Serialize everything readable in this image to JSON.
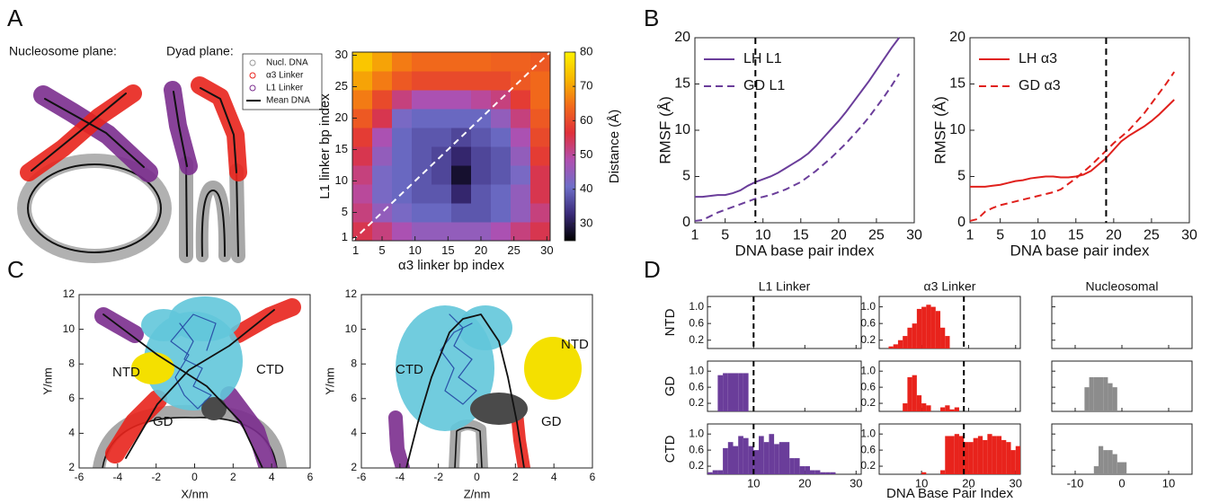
{
  "panel_labels": [
    "A",
    "B",
    "C",
    "D"
  ],
  "panel_a": {
    "captions": [
      "Nucleosome plane:",
      "Dyad plane:"
    ],
    "legend": [
      {
        "name": "Nucl. DNA",
        "color": "#9a9a9a"
      },
      {
        "name": "α3 Linker",
        "color": "#e8231c"
      },
      {
        "name": "L1 Linker",
        "color": "#7b2d8e"
      },
      {
        "name": "Mean DNA",
        "color": "#000000"
      }
    ]
  },
  "chart_data": [
    {
      "type": "heatmap",
      "x_label": "α3 linker bp index",
      "y_label": "L1 linker bp index",
      "xlim": [
        0.5,
        30.5
      ],
      "ylim": [
        0.5,
        30.5
      ],
      "xticks": [
        1,
        5,
        10,
        15,
        20,
        25,
        30
      ],
      "yticks": [
        1,
        5,
        10,
        15,
        20,
        25,
        30
      ],
      "z": [
        [
          55,
          52,
          48,
          45,
          45,
          45,
          45,
          48,
          52,
          55
        ],
        [
          52,
          45,
          42,
          40,
          40,
          38,
          38,
          40,
          45,
          52
        ],
        [
          50,
          42,
          40,
          38,
          38,
          32,
          38,
          40,
          45,
          55
        ],
        [
          52,
          42,
          40,
          38,
          36,
          28,
          36,
          38,
          42,
          55
        ],
        [
          55,
          45,
          40,
          38,
          36,
          32,
          36,
          38,
          45,
          58
        ],
        [
          58,
          48,
          40,
          38,
          38,
          36,
          38,
          40,
          48,
          60
        ],
        [
          62,
          55,
          42,
          40,
          40,
          40,
          40,
          45,
          52,
          62
        ],
        [
          66,
          60,
          52,
          48,
          48,
          48,
          50,
          52,
          58,
          64
        ],
        [
          70,
          66,
          62,
          60,
          60,
          60,
          60,
          60,
          62,
          64
        ],
        [
          74,
          70,
          66,
          64,
          64,
          64,
          64,
          63,
          63,
          62
        ]
      ],
      "diagonal": true,
      "colorbar": {
        "label": "Distance (Å)",
        "clim": [
          25,
          80
        ],
        "ticks": [
          30,
          40,
          50,
          60,
          70,
          80
        ],
        "colors": [
          "#000000",
          "#3a2b7a",
          "#6e6ec8",
          "#b04fb0",
          "#e0303a",
          "#f26a1a",
          "#f8b800",
          "#fff200"
        ]
      }
    },
    {
      "type": "line",
      "x_label": "DNA base pair index",
      "y_label": "RMSF (Å)",
      "x": [
        1,
        2,
        3,
        4,
        5,
        6,
        7,
        8,
        9,
        10,
        11,
        12,
        13,
        14,
        15,
        16,
        17,
        18,
        19,
        20,
        21,
        22,
        23,
        24,
        25,
        26,
        27,
        28
      ],
      "series": [
        {
          "name": "LH L1",
          "color": "#6a3d9a",
          "dash": false,
          "values": [
            2.8,
            2.8,
            2.9,
            3.0,
            3.0,
            3.2,
            3.5,
            4.0,
            4.4,
            4.7,
            5.0,
            5.4,
            5.9,
            6.4,
            6.9,
            7.5,
            8.3,
            9.2,
            10.1,
            11.0,
            12.0,
            13.1,
            14.2,
            15.3,
            16.5,
            17.7,
            18.9,
            20.0
          ]
        },
        {
          "name": "GD L1",
          "color": "#6a3d9a",
          "dash": true,
          "values": [
            0.2,
            0.3,
            0.7,
            1.1,
            1.4,
            1.7,
            2.0,
            2.3,
            2.6,
            2.8,
            3.0,
            3.3,
            3.6,
            4.0,
            4.4,
            5.0,
            5.6,
            6.3,
            7.0,
            7.8,
            8.6,
            9.5,
            10.4,
            11.4,
            12.5,
            13.6,
            14.8,
            16.1
          ]
        }
      ],
      "xlim": [
        1,
        30
      ],
      "ylim": [
        0,
        20
      ],
      "xticks": [
        1,
        5,
        10,
        15,
        20,
        25,
        30
      ],
      "yticks": [
        0,
        5,
        10,
        15,
        20
      ],
      "vline": 9
    },
    {
      "type": "line",
      "x_label": "DNA base pair index",
      "y_label": "RMSF (Å)",
      "x": [
        1,
        2,
        3,
        4,
        5,
        6,
        7,
        8,
        9,
        10,
        11,
        12,
        13,
        14,
        15,
        16,
        17,
        18,
        19,
        20,
        21,
        22,
        23,
        24,
        25,
        26,
        27,
        28
      ],
      "series": [
        {
          "name": "LH α3",
          "color": "#e0201c",
          "dash": false,
          "values": [
            3.9,
            3.9,
            3.9,
            4.0,
            4.1,
            4.3,
            4.5,
            4.6,
            4.8,
            4.9,
            5.0,
            5.0,
            4.9,
            4.9,
            5.0,
            5.2,
            5.6,
            6.3,
            7.0,
            7.9,
            8.8,
            9.4,
            9.9,
            10.4,
            11.0,
            11.7,
            12.5,
            13.3
          ]
        },
        {
          "name": "GD α3",
          "color": "#e0201c",
          "dash": true,
          "values": [
            0.2,
            0.4,
            1.2,
            1.6,
            1.9,
            2.1,
            2.3,
            2.5,
            2.7,
            2.9,
            3.1,
            3.3,
            3.6,
            4.2,
            4.8,
            5.5,
            6.2,
            7.0,
            7.8,
            8.6,
            9.3,
            10.0,
            10.9,
            11.8,
            12.9,
            14.0,
            15.1,
            16.3
          ]
        }
      ],
      "xlim": [
        1,
        30
      ],
      "ylim": [
        0,
        20
      ],
      "xticks": [
        1,
        5,
        10,
        15,
        20,
        25,
        30
      ],
      "yticks": [
        0,
        5,
        10,
        15,
        20
      ],
      "vline": 19
    },
    {
      "type": "scatter",
      "x_label": "X/nm",
      "y_label": "Y/nm",
      "xlim": [
        -6,
        6
      ],
      "ylim": [
        2,
        12
      ],
      "xticks": [
        -6,
        -4,
        -2,
        0,
        2,
        4,
        6
      ],
      "yticks": [
        2,
        4,
        6,
        8,
        10,
        12
      ],
      "annotations": [
        "NTD",
        "CTD",
        "GD"
      ]
    },
    {
      "type": "scatter",
      "x_label": "Z/nm",
      "y_label": "Y/nm",
      "xlim": [
        -6,
        6
      ],
      "ylim": [
        2,
        12
      ],
      "xticks": [
        -6,
        -4,
        -2,
        0,
        2,
        4,
        6
      ],
      "yticks": [
        2,
        4,
        6,
        8,
        10,
        12
      ],
      "annotations": [
        "CTD",
        "NTD",
        "GD"
      ]
    },
    {
      "type": "histogram_grid",
      "x_label": "DNA Base Pair Index",
      "rows": [
        "NTD",
        "GD",
        "CTD"
      ],
      "ylim": [
        0,
        1.25
      ],
      "yticks": [
        0.2,
        0.6,
        {
          "value": 1,
          "label": "1.0"
        }
      ],
      "columns": [
        {
          "title": "L1 Linker",
          "xlim": [
            1,
            31
          ],
          "xticks": [
            10,
            20,
            30
          ],
          "ref_line": 10,
          "show_ytick_labels": true,
          "color": "#6a3d9a",
          "cells": [
            null,
            {
              "bins": [
                3,
                4,
                5,
                6,
                7,
                8,
                9
              ],
              "counts": [
                0.9,
                0.95,
                0.95,
                0.95,
                0.95,
                0.95
              ]
            },
            {
              "bins": [
                1,
                2,
                3,
                4,
                5,
                6,
                7,
                8,
                9,
                10,
                11,
                12,
                13,
                14,
                15,
                16,
                17,
                18,
                19,
                20,
                21,
                22,
                23,
                24,
                25,
                26
              ],
              "counts": [
                0.05,
                0.1,
                0.1,
                0.65,
                0.8,
                0.7,
                0.95,
                0.9,
                0.7,
                0.6,
                0.95,
                0.8,
                1.0,
                0.75,
                0.8,
                0.8,
                0.4,
                0.4,
                0.2,
                0.2,
                0.1,
                0.1,
                0.05,
                0.05,
                0.05
              ]
            }
          ]
        },
        {
          "title": "α3 Linker",
          "xlim": [
            1,
            31
          ],
          "xticks": [
            10,
            20,
            30
          ],
          "ref_line": 19,
          "show_ytick_labels": true,
          "color": "#e8231c",
          "cells": [
            {
              "bins": [
                3,
                4,
                5,
                6,
                7,
                8,
                9,
                10,
                11,
                12,
                13,
                14,
                15,
                16
              ],
              "counts": [
                0.05,
                0.1,
                0.2,
                0.3,
                0.5,
                0.6,
                0.95,
                1.0,
                1.05,
                1.0,
                0.9,
                0.5,
                0.3
              ]
            },
            {
              "bins": [
                6,
                7,
                8,
                9,
                10,
                11,
                12,
                13,
                14,
                15,
                16,
                17,
                18
              ],
              "counts": [
                0.2,
                0.85,
                0.9,
                0.4,
                0.2,
                0.15,
                0,
                0,
                0.1,
                0.15,
                0.05,
                0.1
              ]
            },
            {
              "bins": [
                10,
                11,
                12,
                13,
                14,
                15,
                16,
                17,
                18,
                19,
                20,
                21,
                22,
                23,
                24,
                25,
                26,
                27,
                28,
                29,
                30,
                31
              ],
              "counts": [
                0.05,
                0,
                0,
                0,
                0.1,
                0.95,
                0.95,
                1.0,
                0.95,
                0.8,
                0.8,
                0.9,
                0.95,
                0.85,
                1.0,
                0.95,
                0.95,
                0.85,
                0.8,
                0.6,
                0.7
              ]
            }
          ]
        },
        {
          "title": "Nucleosomal",
          "xlim": [
            -15,
            15
          ],
          "xticks": [
            -10,
            0,
            10
          ],
          "show_ytick_labels": false,
          "color": "#8c8c8c",
          "cells": [
            null,
            {
              "bins": [
                -8,
                -7,
                -6,
                -5,
                -4,
                -3,
                -2,
                -1
              ],
              "counts": [
                0.6,
                0.85,
                0.85,
                0.85,
                0.85,
                0.7,
                0.6
              ]
            },
            {
              "bins": [
                -6,
                -5,
                -4,
                -3,
                -2,
                -1,
                0,
                1
              ],
              "counts": [
                0.2,
                0.7,
                0.6,
                0.6,
                0.5,
                0.3,
                0.3
              ]
            }
          ]
        }
      ]
    }
  ]
}
